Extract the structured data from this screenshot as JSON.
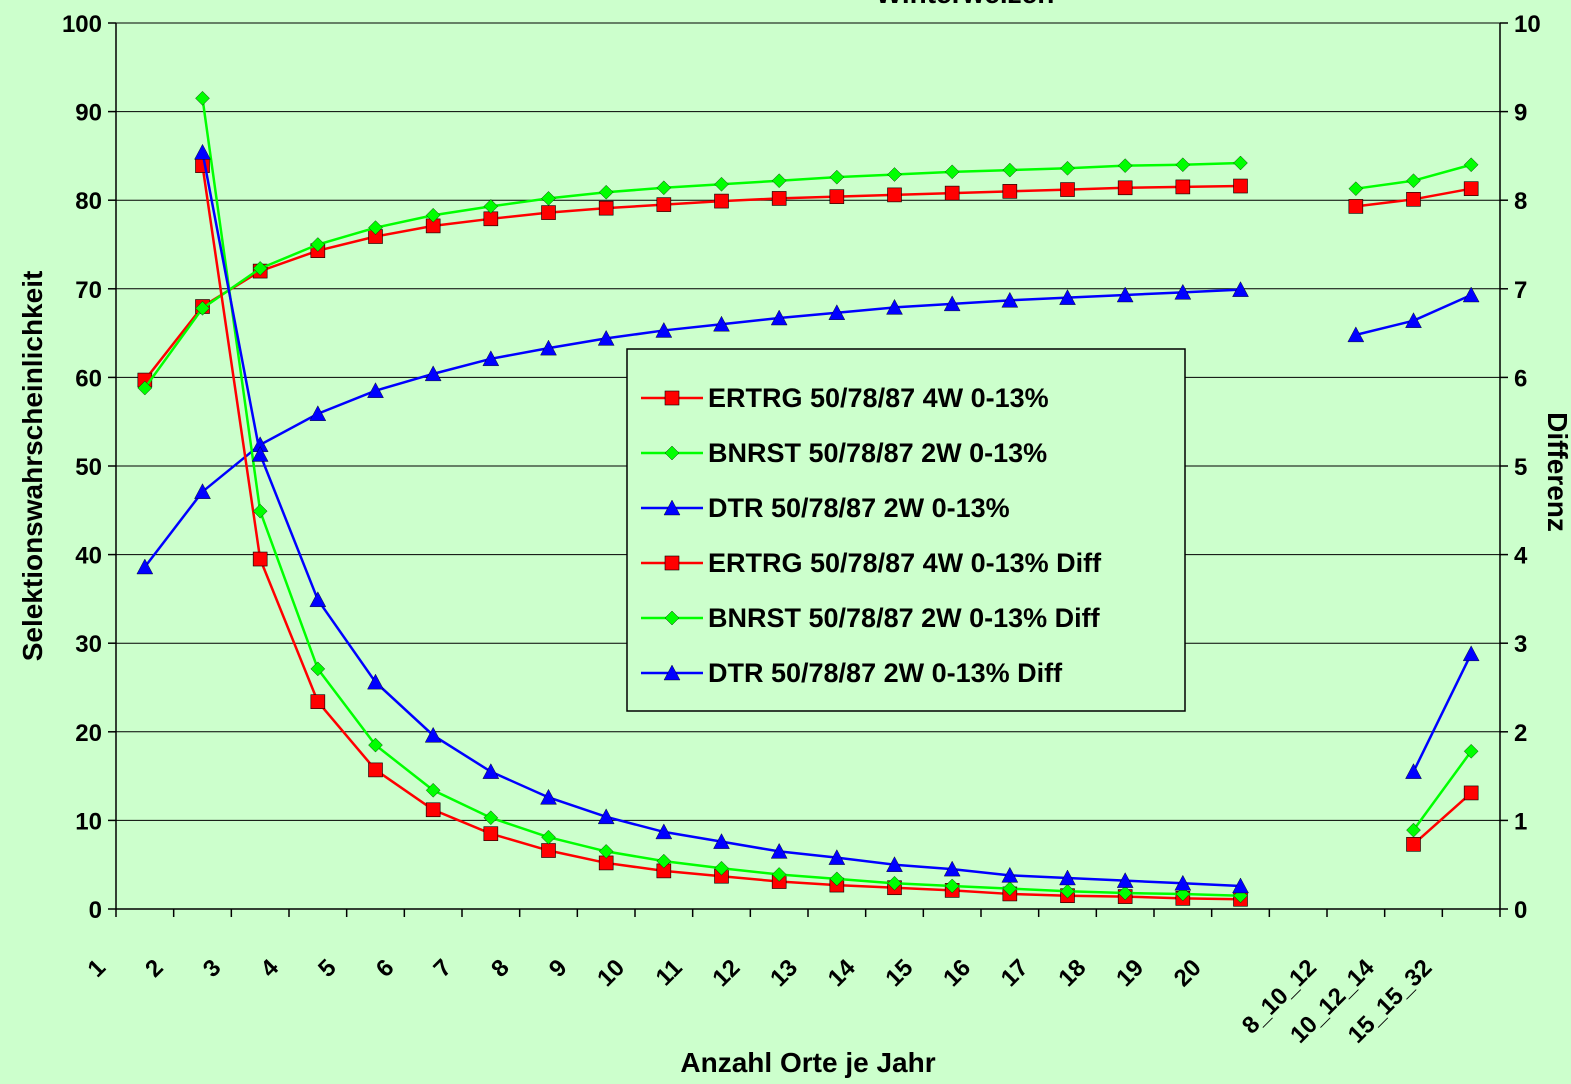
{
  "chart_data": {
    "type": "line",
    "title": "Winterweizen",
    "xlabel": "Anzahl Orte je Jahr",
    "ylabel": "Selektionswahrscheinlichkeit",
    "y2label": "Differenz",
    "ylim": [
      0,
      100
    ],
    "y2lim": [
      0,
      10
    ],
    "yticks": [
      "0",
      "10",
      "20",
      "30",
      "40",
      "50",
      "60",
      "70",
      "80",
      "90",
      "100"
    ],
    "y2ticks": [
      "0",
      "1",
      "2",
      "3",
      "4",
      "5",
      "6",
      "7",
      "8",
      "9",
      "10"
    ],
    "categories": [
      "1",
      "2",
      "3",
      "4",
      "5",
      "6",
      "7",
      "8",
      "9",
      "10",
      "11",
      "12",
      "13",
      "14",
      "15",
      "16",
      "17",
      "18",
      "19",
      "20",
      "",
      "8_10_12",
      "10_12_14",
      "15_15_32"
    ],
    "grid": "horizontal",
    "legend_position": "center",
    "series": [
      {
        "name": "ERTRG 50/78/87 4W 0-13%",
        "axis": "left",
        "color": "#ff0000",
        "marker": "square",
        "values": [
          59.7,
          68,
          72,
          74.3,
          75.9,
          77.1,
          77.9,
          78.6,
          79.1,
          79.5,
          79.9,
          80.2,
          80.4,
          80.6,
          80.8,
          81,
          81.2,
          81.4,
          81.5,
          81.6,
          null,
          79.3,
          80.1,
          81.3
        ]
      },
      {
        "name": "BNRST 50/78/87 2W 0-13%",
        "axis": "left",
        "color": "#00ff00",
        "marker": "diamond",
        "values": [
          58.8,
          67.8,
          72.3,
          75,
          76.9,
          78.3,
          79.3,
          80.2,
          80.9,
          81.4,
          81.8,
          82.2,
          82.6,
          82.9,
          83.2,
          83.4,
          83.6,
          83.9,
          84,
          84.2,
          null,
          81.3,
          82.2,
          84
        ]
      },
      {
        "name": "DTR 50/78/87 2W 0-13%",
        "axis": "left",
        "color": "#0000ff",
        "marker": "triangle",
        "values": [
          38.6,
          47.1,
          52.4,
          55.9,
          58.5,
          60.4,
          62.1,
          63.3,
          64.4,
          65.3,
          66,
          66.7,
          67.3,
          67.9,
          68.3,
          68.7,
          69,
          69.3,
          69.6,
          69.9,
          null,
          64.8,
          66.4,
          69.3
        ]
      },
      {
        "name": "ERTRG 50/78/87 4W 0-13% Diff",
        "axis": "right",
        "color": "#ff0000",
        "marker": "square",
        "values": [
          null,
          8.39,
          3.95,
          2.34,
          1.57,
          1.12,
          0.85,
          0.66,
          0.52,
          0.43,
          0.37,
          0.31,
          0.27,
          0.24,
          0.21,
          0.17,
          0.15,
          0.14,
          0.12,
          0.11,
          null,
          null,
          0.73,
          1.31
        ]
      },
      {
        "name": "BNRST 50/78/87 2W 0-13% Diff",
        "axis": "right",
        "color": "#00ff00",
        "marker": "diamond",
        "values": [
          null,
          9.15,
          4.49,
          2.71,
          1.85,
          1.34,
          1.03,
          0.81,
          0.65,
          0.54,
          0.46,
          0.39,
          0.34,
          0.29,
          0.26,
          0.23,
          0.2,
          0.18,
          0.17,
          0.15,
          null,
          null,
          0.89,
          1.78
        ]
      },
      {
        "name": "DTR 50/78/87 2W 0-13% Diff",
        "axis": "right",
        "color": "#0000ff",
        "marker": "triangle",
        "values": [
          null,
          8.54,
          5.13,
          3.49,
          2.56,
          1.96,
          1.55,
          1.26,
          1.04,
          0.87,
          0.76,
          0.65,
          0.58,
          0.5,
          0.45,
          0.38,
          0.35,
          0.32,
          0.29,
          0.26,
          null,
          null,
          1.55,
          2.88
        ]
      }
    ]
  }
}
